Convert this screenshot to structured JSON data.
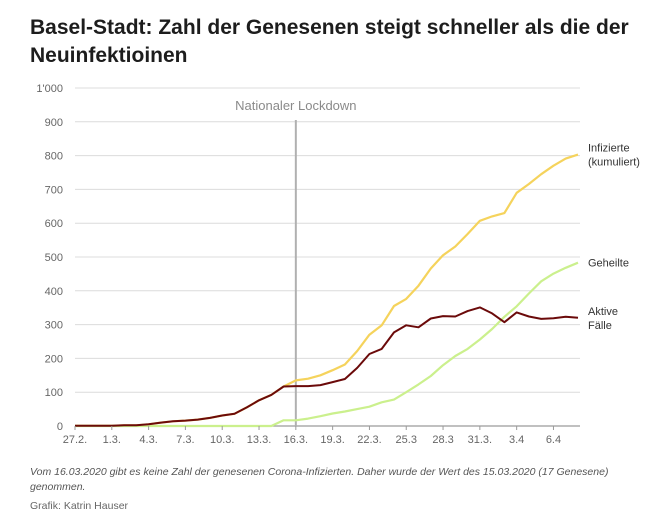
{
  "title": "Basel-Stadt: Zahl der Genesenen steigt schneller als die der Neuinfektioinen",
  "footnote": "Vom 16.03.2020 gibt es keine Zahl der genesenen Corona-Infizierten. Daher wurde der Wert des 15.03.2020 (17 Genesene) genommen.",
  "credit": "Grafik: Katrin Hauser",
  "chart_data": {
    "type": "line",
    "title": "Basel-Stadt: Zahl der Genesenen steigt schneller als die der Neuinfektioinen",
    "x_tick_labels": [
      "27.2.",
      "1.3.",
      "4.3.",
      "7.3.",
      "10.3.",
      "13.3.",
      "16.3.",
      "19.3.",
      "22.3.",
      "25.3",
      "28.3",
      "31.3.",
      "3.4",
      "6.4"
    ],
    "x_start_label": "27.2.",
    "x_end_label": "6.4",
    "y_tick_labels": [
      "0",
      "100",
      "200",
      "300",
      "400",
      "500",
      "600",
      "700",
      "800",
      "900",
      "1'000"
    ],
    "ylim": [
      0,
      1000
    ],
    "grid": true,
    "colors": {
      "infizierte": "#f5d35c",
      "geheilte": "#cbf08d",
      "aktive": "#6b0a0a",
      "lockdown": "#b0b0b0",
      "grid": "#dcdcdc"
    },
    "annotation": {
      "label": "Nationaler Lockdown",
      "x_day": 18
    },
    "series": [
      {
        "name": "Infizierte (kumuliert)",
        "label_lines": [
          "Infizierte",
          "(kumuliert)"
        ],
        "color_key": "infizierte",
        "values": [
          1,
          1,
          1,
          1,
          2,
          2,
          5,
          10,
          14,
          16,
          19,
          24,
          31,
          36,
          55,
          76,
          92,
          117,
          135,
          140,
          150,
          165,
          182,
          222,
          270,
          298,
          355,
          376,
          415,
          466,
          505,
          531,
          568,
          607,
          620,
          630,
          690,
          716,
          745,
          770,
          791,
          803
        ]
      },
      {
        "name": "Geheilte",
        "label_lines": [
          "Geheilte"
        ],
        "color_key": "geheilte",
        "values": [
          0,
          0,
          0,
          0,
          0,
          0,
          0,
          0,
          0,
          0,
          0,
          0,
          0,
          0,
          0,
          0,
          0,
          17,
          17,
          22,
          29,
          37,
          43,
          50,
          57,
          70,
          78,
          100,
          123,
          148,
          180,
          207,
          228,
          256,
          287,
          323,
          354,
          392,
          428,
          451,
          468,
          483
        ]
      },
      {
        "name": "Aktive Fälle",
        "label_lines": [
          "Aktive",
          "Fälle"
        ],
        "color_key": "aktive",
        "values": [
          1,
          1,
          1,
          1,
          2,
          2,
          5,
          10,
          14,
          16,
          19,
          24,
          31,
          36,
          55,
          76,
          92,
          117,
          118,
          118,
          121,
          130,
          139,
          172,
          213,
          228,
          277,
          298,
          292,
          318,
          325,
          324,
          340,
          351,
          333,
          307,
          336,
          324,
          317,
          319,
          323,
          320
        ]
      }
    ]
  }
}
